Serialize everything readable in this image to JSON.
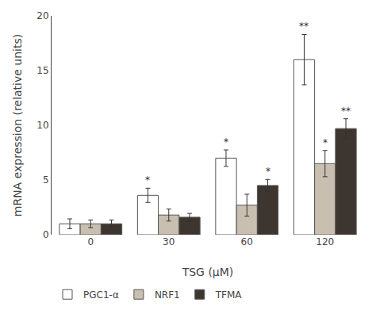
{
  "chart_data": {
    "type": "bar",
    "categories": [
      "0",
      "30",
      "60",
      "120"
    ],
    "series": [
      {
        "name": "PGC1-α",
        "color": "#FFFFFF",
        "values": [
          1.0,
          3.6,
          7.0,
          16.0
        ],
        "errors": [
          0.45,
          0.65,
          0.75,
          2.3
        ],
        "significance": [
          null,
          "*",
          "*",
          "**"
        ]
      },
      {
        "name": "NRF1",
        "color": "#C8BFB0",
        "values": [
          1.0,
          1.8,
          2.7,
          6.5
        ],
        "errors": [
          0.35,
          0.55,
          1.0,
          1.2
        ],
        "significance": [
          null,
          null,
          null,
          "*"
        ]
      },
      {
        "name": "TFMA",
        "color": "#3D3530",
        "values": [
          1.0,
          1.6,
          4.5,
          9.7
        ],
        "errors": [
          0.35,
          0.35,
          0.55,
          0.9
        ],
        "significance": [
          null,
          null,
          "*",
          "**"
        ]
      }
    ],
    "xlabel": "TSG (μM)",
    "ylabel": "mRNA expression (relative units)",
    "ylim": [
      0,
      20
    ],
    "yticks": [
      0,
      5,
      10,
      15,
      20
    ],
    "grid": false,
    "legend": "bottom"
  }
}
